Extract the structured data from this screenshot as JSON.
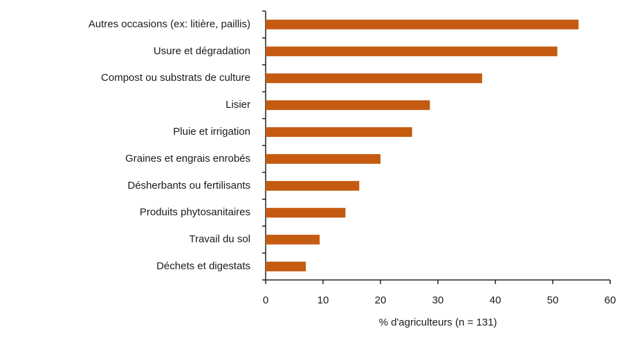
{
  "chart_data": {
    "type": "bar",
    "orientation": "horizontal",
    "categories": [
      "Autres occasions (ex: litière, paillis)",
      "Usure et dégradation",
      "Compost ou substrats de culture",
      "Lisier",
      "Pluie et irrigation",
      "Graines et engrais enrobés",
      "Désherbants ou fertilisants",
      "Produits phytosanitaires",
      "Travail du sol",
      "Déchets et digestats"
    ],
    "values": [
      54.5,
      50.8,
      37.7,
      28.6,
      25.5,
      20,
      16.3,
      13.9,
      9.4,
      7
    ],
    "color": "#c55a11",
    "xlabel": "% d'agriculteurs (n = 131)",
    "xlim": [
      0,
      60
    ],
    "xticks": [
      0,
      10,
      20,
      30,
      40,
      50,
      60
    ],
    "grid": false
  }
}
